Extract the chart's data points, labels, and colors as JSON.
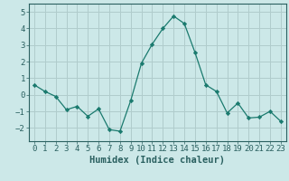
{
  "x": [
    0,
    1,
    2,
    3,
    4,
    5,
    6,
    7,
    8,
    9,
    10,
    11,
    12,
    13,
    14,
    15,
    16,
    17,
    18,
    19,
    20,
    21,
    22,
    23
  ],
  "y": [
    0.6,
    0.2,
    -0.1,
    -0.9,
    -0.7,
    -1.3,
    -0.85,
    -2.1,
    -2.2,
    -0.35,
    1.9,
    3.05,
    4.0,
    4.75,
    4.3,
    2.55,
    0.6,
    0.2,
    -1.1,
    -0.5,
    -1.4,
    -1.35,
    -1.0,
    -1.6
  ],
  "line_color": "#1a7a6e",
  "marker_color": "#1a7a6e",
  "background_color": "#cce8e8",
  "grid_color": "#b0cccc",
  "xlabel": "Humidex (Indice chaleur)",
  "ylim": [
    -2.8,
    5.5
  ],
  "xlim": [
    -0.5,
    23.5
  ],
  "yticks": [
    -2,
    -1,
    0,
    1,
    2,
    3,
    4,
    5
  ],
  "xticks": [
    0,
    1,
    2,
    3,
    4,
    5,
    6,
    7,
    8,
    9,
    10,
    11,
    12,
    13,
    14,
    15,
    16,
    17,
    18,
    19,
    20,
    21,
    22,
    23
  ],
  "xlabel_fontsize": 7.5,
  "tick_fontsize": 6.5,
  "spine_color": "#2a6060"
}
